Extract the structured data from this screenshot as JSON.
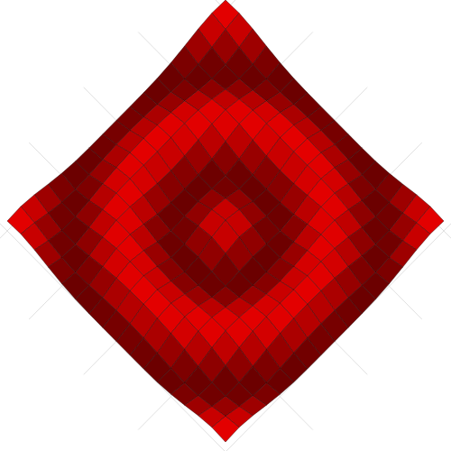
{
  "chart_data": {
    "type": "surface",
    "x": [
      -8,
      -7,
      -6,
      -5,
      -4,
      -3,
      -2,
      -1,
      0,
      1,
      2,
      3,
      4,
      5,
      6,
      7,
      8
    ],
    "y": [
      -8,
      -7,
      -6,
      -5,
      -4,
      -3,
      -2,
      -1,
      0,
      1,
      2,
      3,
      4,
      5,
      6,
      7,
      8
    ],
    "z": [
      [
        0.83,
        0.98,
        0.6,
        -0.02,
        -0.56,
        -0.87,
        -0.98,
        -1.0,
        -0.99,
        -1.0,
        -0.98,
        -0.87,
        -0.56,
        -0.02,
        0.6,
        0.98,
        0.83
      ],
      [
        0.98,
        0.5,
        -0.26,
        -0.83,
        -1.0,
        -0.85,
        -0.58,
        -0.37,
        -0.29,
        -0.37,
        -0.58,
        -0.85,
        -1.0,
        -0.83,
        -0.26,
        0.5,
        0.98
      ],
      [
        0.6,
        -0.26,
        -0.9,
        -0.94,
        -0.51,
        0.05,
        0.47,
        0.7,
        0.77,
        0.7,
        0.47,
        0.05,
        -0.51,
        -0.94,
        -0.9,
        -0.26,
        0.6
      ],
      [
        -0.02,
        -0.83,
        -0.94,
        -0.37,
        0.39,
        0.88,
        1.0,
        0.94,
        0.89,
        0.94,
        1.0,
        0.88,
        0.39,
        -0.37,
        -0.94,
        -0.83,
        -0.02
      ],
      [
        -0.56,
        -1.0,
        -0.51,
        0.39,
        0.96,
        0.89,
        0.47,
        0.08,
        -0.06,
        0.08,
        0.47,
        0.89,
        0.96,
        0.39,
        -0.51,
        -1.0,
        -0.56
      ],
      [
        -0.87,
        -0.85,
        0.05,
        0.88,
        0.89,
        0.22,
        -0.49,
        -0.86,
        -0.94,
        -0.86,
        -0.49,
        0.22,
        0.89,
        0.88,
        0.05,
        -0.85,
        -0.87
      ],
      [
        -0.98,
        -0.58,
        0.47,
        1.0,
        0.47,
        -0.49,
        -0.99,
        -0.86,
        -0.69,
        -0.86,
        -0.99,
        -0.49,
        0.47,
        1.0,
        0.47,
        -0.58,
        -0.98
      ],
      [
        -1.0,
        -0.37,
        0.7,
        0.94,
        0.08,
        -0.86,
        -0.86,
        -0.08,
        0.4,
        -0.08,
        -0.86,
        -0.86,
        0.08,
        0.94,
        0.7,
        -0.37,
        -1.0
      ],
      [
        -0.99,
        -0.29,
        0.77,
        0.89,
        -0.06,
        -0.94,
        -0.69,
        0.4,
        1.0,
        0.4,
        -0.69,
        -0.94,
        -0.06,
        0.89,
        0.77,
        -0.29,
        -0.99
      ],
      [
        -1.0,
        -0.37,
        0.7,
        0.94,
        0.08,
        -0.86,
        -0.86,
        -0.08,
        0.4,
        -0.08,
        -0.86,
        -0.86,
        0.08,
        0.94,
        0.7,
        -0.37,
        -1.0
      ],
      [
        -0.98,
        -0.58,
        0.47,
        1.0,
        0.47,
        -0.49,
        -0.99,
        -0.86,
        -0.69,
        -0.86,
        -0.99,
        -0.49,
        0.47,
        1.0,
        0.47,
        -0.58,
        -0.98
      ],
      [
        -0.87,
        -0.85,
        0.05,
        0.88,
        0.89,
        0.22,
        -0.49,
        -0.86,
        -0.94,
        -0.86,
        -0.49,
        0.22,
        0.89,
        0.88,
        0.05,
        -0.85,
        -0.87
      ],
      [
        -0.56,
        -1.0,
        -0.51,
        0.39,
        0.96,
        0.89,
        0.47,
        0.08,
        -0.06,
        0.08,
        0.47,
        0.89,
        0.96,
        0.39,
        -0.51,
        -1.0,
        -0.56
      ],
      [
        -0.02,
        -0.83,
        -0.94,
        -0.37,
        0.39,
        0.88,
        1.0,
        0.94,
        0.89,
        0.94,
        1.0,
        0.88,
        0.39,
        -0.37,
        -0.94,
        -0.83,
        -0.02
      ],
      [
        0.6,
        -0.26,
        -0.9,
        -0.94,
        -0.51,
        0.05,
        0.47,
        0.7,
        0.77,
        0.7,
        0.47,
        0.05,
        -0.51,
        -0.94,
        -0.9,
        -0.26,
        0.6
      ],
      [
        0.98,
        0.5,
        -0.26,
        -0.83,
        -1.0,
        -0.85,
        -0.58,
        -0.37,
        -0.29,
        -0.37,
        -0.58,
        -0.85,
        -1.0,
        -0.83,
        -0.26,
        0.5,
        0.98
      ],
      [
        0.83,
        0.98,
        0.6,
        -0.02,
        -0.56,
        -0.87,
        -0.98,
        -1.0,
        -0.99,
        -1.0,
        -0.98,
        -0.87,
        -0.56,
        -0.02,
        0.6,
        0.98,
        0.83
      ]
    ],
    "xlim": [
      -8,
      8
    ],
    "ylim": [
      -8,
      8
    ],
    "zlim": [
      -1,
      1
    ],
    "xticks": [
      -8,
      -4,
      0,
      4,
      8
    ],
    "yticks": [
      -8,
      -4,
      0,
      4,
      8
    ],
    "tick_labels": false,
    "grid": true,
    "color": "#f00000"
  }
}
